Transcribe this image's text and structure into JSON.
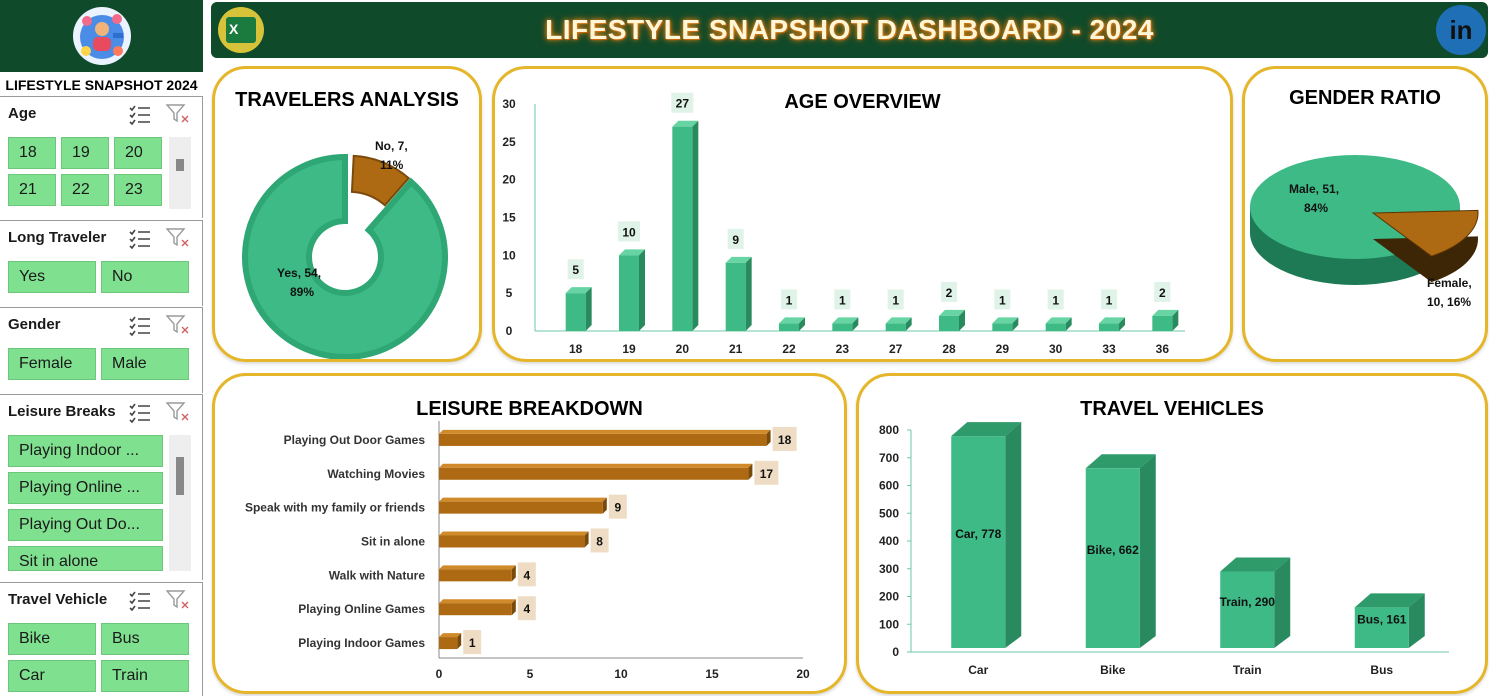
{
  "header": {
    "title": "LIFESTYLE SNAPSHOT DASHBOARD - 2024",
    "excel_glyph": "X",
    "linkedin_glyph": "in"
  },
  "sidebar": {
    "title": "LIFESTYLE SNAPSHOT 2024",
    "slicers": [
      {
        "name": "Age",
        "items": [
          "18",
          "19",
          "20",
          "21",
          "22",
          "23"
        ]
      },
      {
        "name": "Long Traveler",
        "items": [
          "Yes",
          "No"
        ]
      },
      {
        "name": "Gender",
        "items": [
          "Female",
          "Male"
        ]
      },
      {
        "name": "Leisure Breaks",
        "items": [
          "Playing Indoor ...",
          "Playing Online ...",
          "Playing Out Do...",
          "Sit in alone"
        ]
      },
      {
        "name": "Travel Vehicle",
        "items": [
          "Bike",
          "Bus",
          "Car",
          "Train"
        ]
      }
    ]
  },
  "colors": {
    "green": "#3dba86",
    "green_dark": "#2a8a5f",
    "brown": "#ad6a12",
    "brown_dark": "#7a4a0a",
    "header_bg": "#0f4a2a",
    "tile": "#7fe08f",
    "panel_border": "#e5b62a"
  },
  "panels": {
    "travelers": {
      "title": "TRAVELERS ANALYSIS",
      "chart_data": {
        "type": "pie",
        "categories": [
          "Yes",
          "No"
        ],
        "values": [
          54,
          7
        ],
        "labels": [
          "Yes, 54,",
          "89%",
          "No, 7,",
          "11%"
        ]
      }
    },
    "age": {
      "title": "AGE OVERVIEW",
      "chart_data": {
        "type": "bar",
        "categories": [
          "18",
          "19",
          "20",
          "21",
          "22",
          "23",
          "27",
          "28",
          "29",
          "30",
          "33",
          "36"
        ],
        "values": [
          5,
          10,
          27,
          9,
          1,
          1,
          1,
          2,
          1,
          1,
          1,
          2
        ],
        "ylim": [
          0,
          30
        ],
        "yticks": [
          "0",
          "5",
          "10",
          "15",
          "20",
          "25",
          "30"
        ],
        "data_labels": [
          "5",
          "10",
          "27",
          "9",
          "1",
          "1",
          "1",
          "2",
          "1",
          "1",
          "1",
          "2"
        ]
      }
    },
    "gender": {
      "title": "GENDER RATIO",
      "chart_data": {
        "type": "pie",
        "categories": [
          "Male",
          "Female"
        ],
        "values": [
          51,
          10
        ],
        "labels": [
          "Male, 51,",
          "84%",
          "Female,",
          "10, 16%"
        ]
      }
    },
    "leisure": {
      "title": "LEISURE BREAKDOWN",
      "chart_data": {
        "type": "bar",
        "orientation": "horizontal",
        "categories": [
          "Playing Out Door Games",
          "Watching Movies",
          "Speak with my family or friends",
          "Sit in alone",
          "Walk with Nature",
          "Playing Online Games",
          "Playing Indoor Games"
        ],
        "values": [
          18,
          17,
          9,
          8,
          4,
          4,
          1
        ],
        "xlim": [
          0,
          20
        ],
        "xticks": [
          "0",
          "5",
          "10",
          "15",
          "20"
        ],
        "data_labels": [
          "18",
          "17",
          "9",
          "8",
          "4",
          "4",
          "1"
        ]
      }
    },
    "vehicles": {
      "title": "TRAVEL VEHICLES",
      "chart_data": {
        "type": "bar",
        "categories": [
          "Car",
          "Bike",
          "Train",
          "Bus"
        ],
        "values": [
          778,
          662,
          290,
          161
        ],
        "ylim": [
          0,
          800
        ],
        "yticks": [
          "0",
          "100",
          "200",
          "300",
          "400",
          "500",
          "600",
          "700",
          "800"
        ],
        "data_labels": [
          "Car, 778",
          "Bike, 662",
          "Train, 290",
          "Bus, 161"
        ]
      }
    }
  }
}
